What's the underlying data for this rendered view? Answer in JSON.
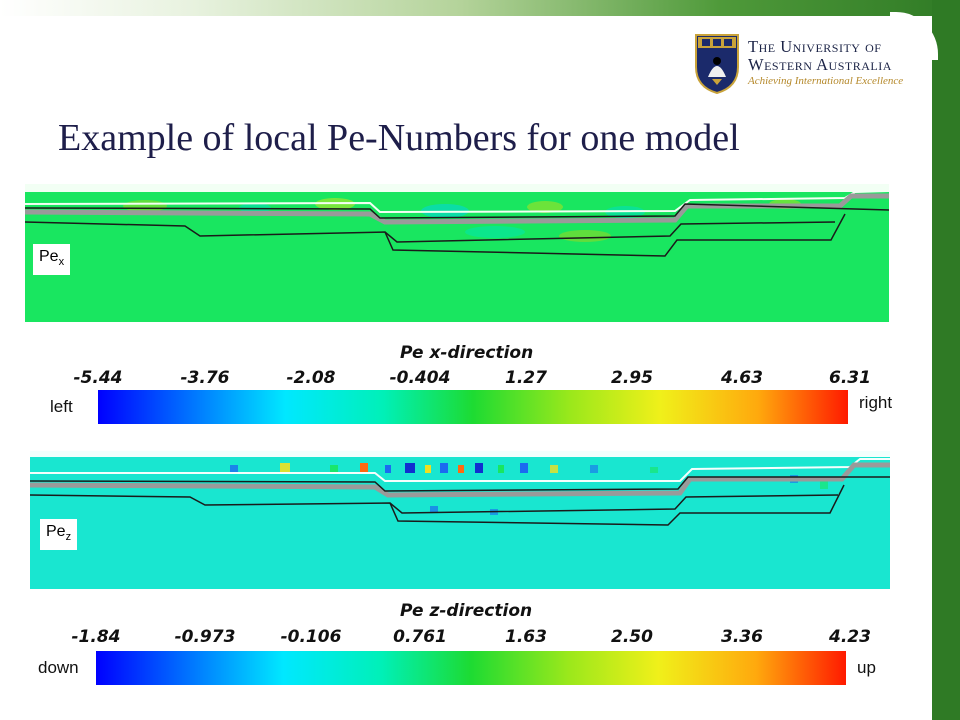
{
  "slide": {
    "title": "Example of local Pe-Numbers for one model"
  },
  "logo": {
    "line1": "The University of",
    "line2": "Western Australia",
    "motto": "Achieving International Excellence"
  },
  "panel_x": {
    "label_main": "Pe",
    "label_sub": "x",
    "colorbar_title": "Pe x-direction",
    "ticks": [
      "-5.44",
      "-3.76",
      "-2.08",
      "-0.404",
      "1.27",
      "2.95",
      "4.63",
      "6.31"
    ],
    "left_label": "left",
    "right_label": "right"
  },
  "panel_z": {
    "label_main": "Pe",
    "label_sub": "z",
    "colorbar_title": "Pe z-direction",
    "ticks": [
      "-1.84",
      "-0.973",
      "-0.106",
      "0.761",
      "1.63",
      "2.50",
      "3.36",
      "4.23"
    ],
    "left_label": "down",
    "right_label": "up"
  },
  "colors": {
    "brand_green": "#2f7a25",
    "title_navy": "#1e1e4a",
    "field_x": "#19e660",
    "field_z": "#19e6d0"
  }
}
